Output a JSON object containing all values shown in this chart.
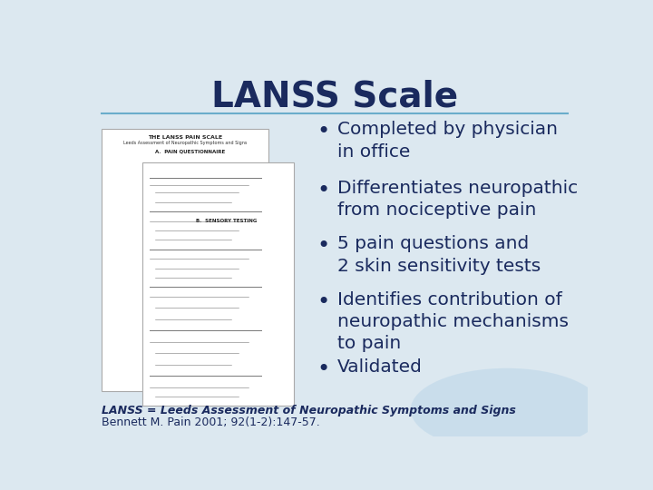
{
  "title": "LANSS Scale",
  "title_color": "#1a2a5e",
  "title_fontsize": 28,
  "bg_color": "#dce8f0",
  "bullet_points": [
    "Completed by physician\nin office",
    "Differentiates neuropathic\nfrom nociceptive pain",
    "5 pain questions and\n2 skin sensitivity tests",
    "Identifies contribution of\nneuropathic mechanisms\nto pain",
    "Validated"
  ],
  "bullet_color": "#1a2a5e",
  "bullet_fontsize": 14.5,
  "footer_bold": "LANSS = Leeds Assessment of Neuropathic Symptoms and Signs",
  "footer_normal": "Bennett M. Pain 2001; 92(1-2):147-57.",
  "footer_fontsize": 9,
  "separator_color": "#6aadcb",
  "watermark_color": "#b8d4e8"
}
